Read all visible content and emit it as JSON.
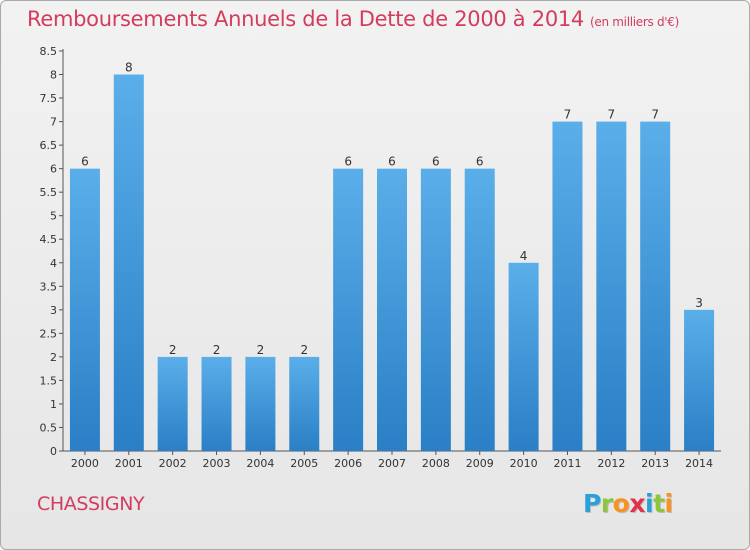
{
  "title": "Remboursements Annuels de la Dette de 2000 à 2014",
  "unit_note": "(en milliers d'€)",
  "commune": "CHASSIGNY",
  "logo": {
    "letters": [
      "P",
      "r",
      "o",
      "x",
      "i",
      "t",
      "i"
    ],
    "colors": [
      "#2aa0d8",
      "#8cc63f",
      "#f7931e",
      "#e2324a",
      "#2aa0d8",
      "#8cc63f",
      "#f7931e"
    ]
  },
  "colors": {
    "bar_top": "#5aaee9",
    "bar_bottom": "#2a7fc6",
    "title": "#d43c5d"
  },
  "chart_data": {
    "type": "bar",
    "title": "Remboursements Annuels de la Dette de 2000 à 2014",
    "xlabel": "",
    "ylabel": "",
    "ylim": [
      0,
      8.5
    ],
    "yticks": [
      0,
      0.5,
      1,
      1.5,
      2,
      2.5,
      3,
      3.5,
      4,
      4.5,
      5,
      5.5,
      6,
      6.5,
      7,
      7.5,
      8,
      8.5
    ],
    "categories": [
      "2000",
      "2001",
      "2002",
      "2003",
      "2004",
      "2005",
      "2006",
      "2007",
      "2008",
      "2009",
      "2010",
      "2011",
      "2012",
      "2013",
      "2014"
    ],
    "values": [
      6,
      8,
      2,
      2,
      2,
      2,
      6,
      6,
      6,
      6,
      4,
      7,
      7,
      7,
      3
    ],
    "grid": false
  }
}
